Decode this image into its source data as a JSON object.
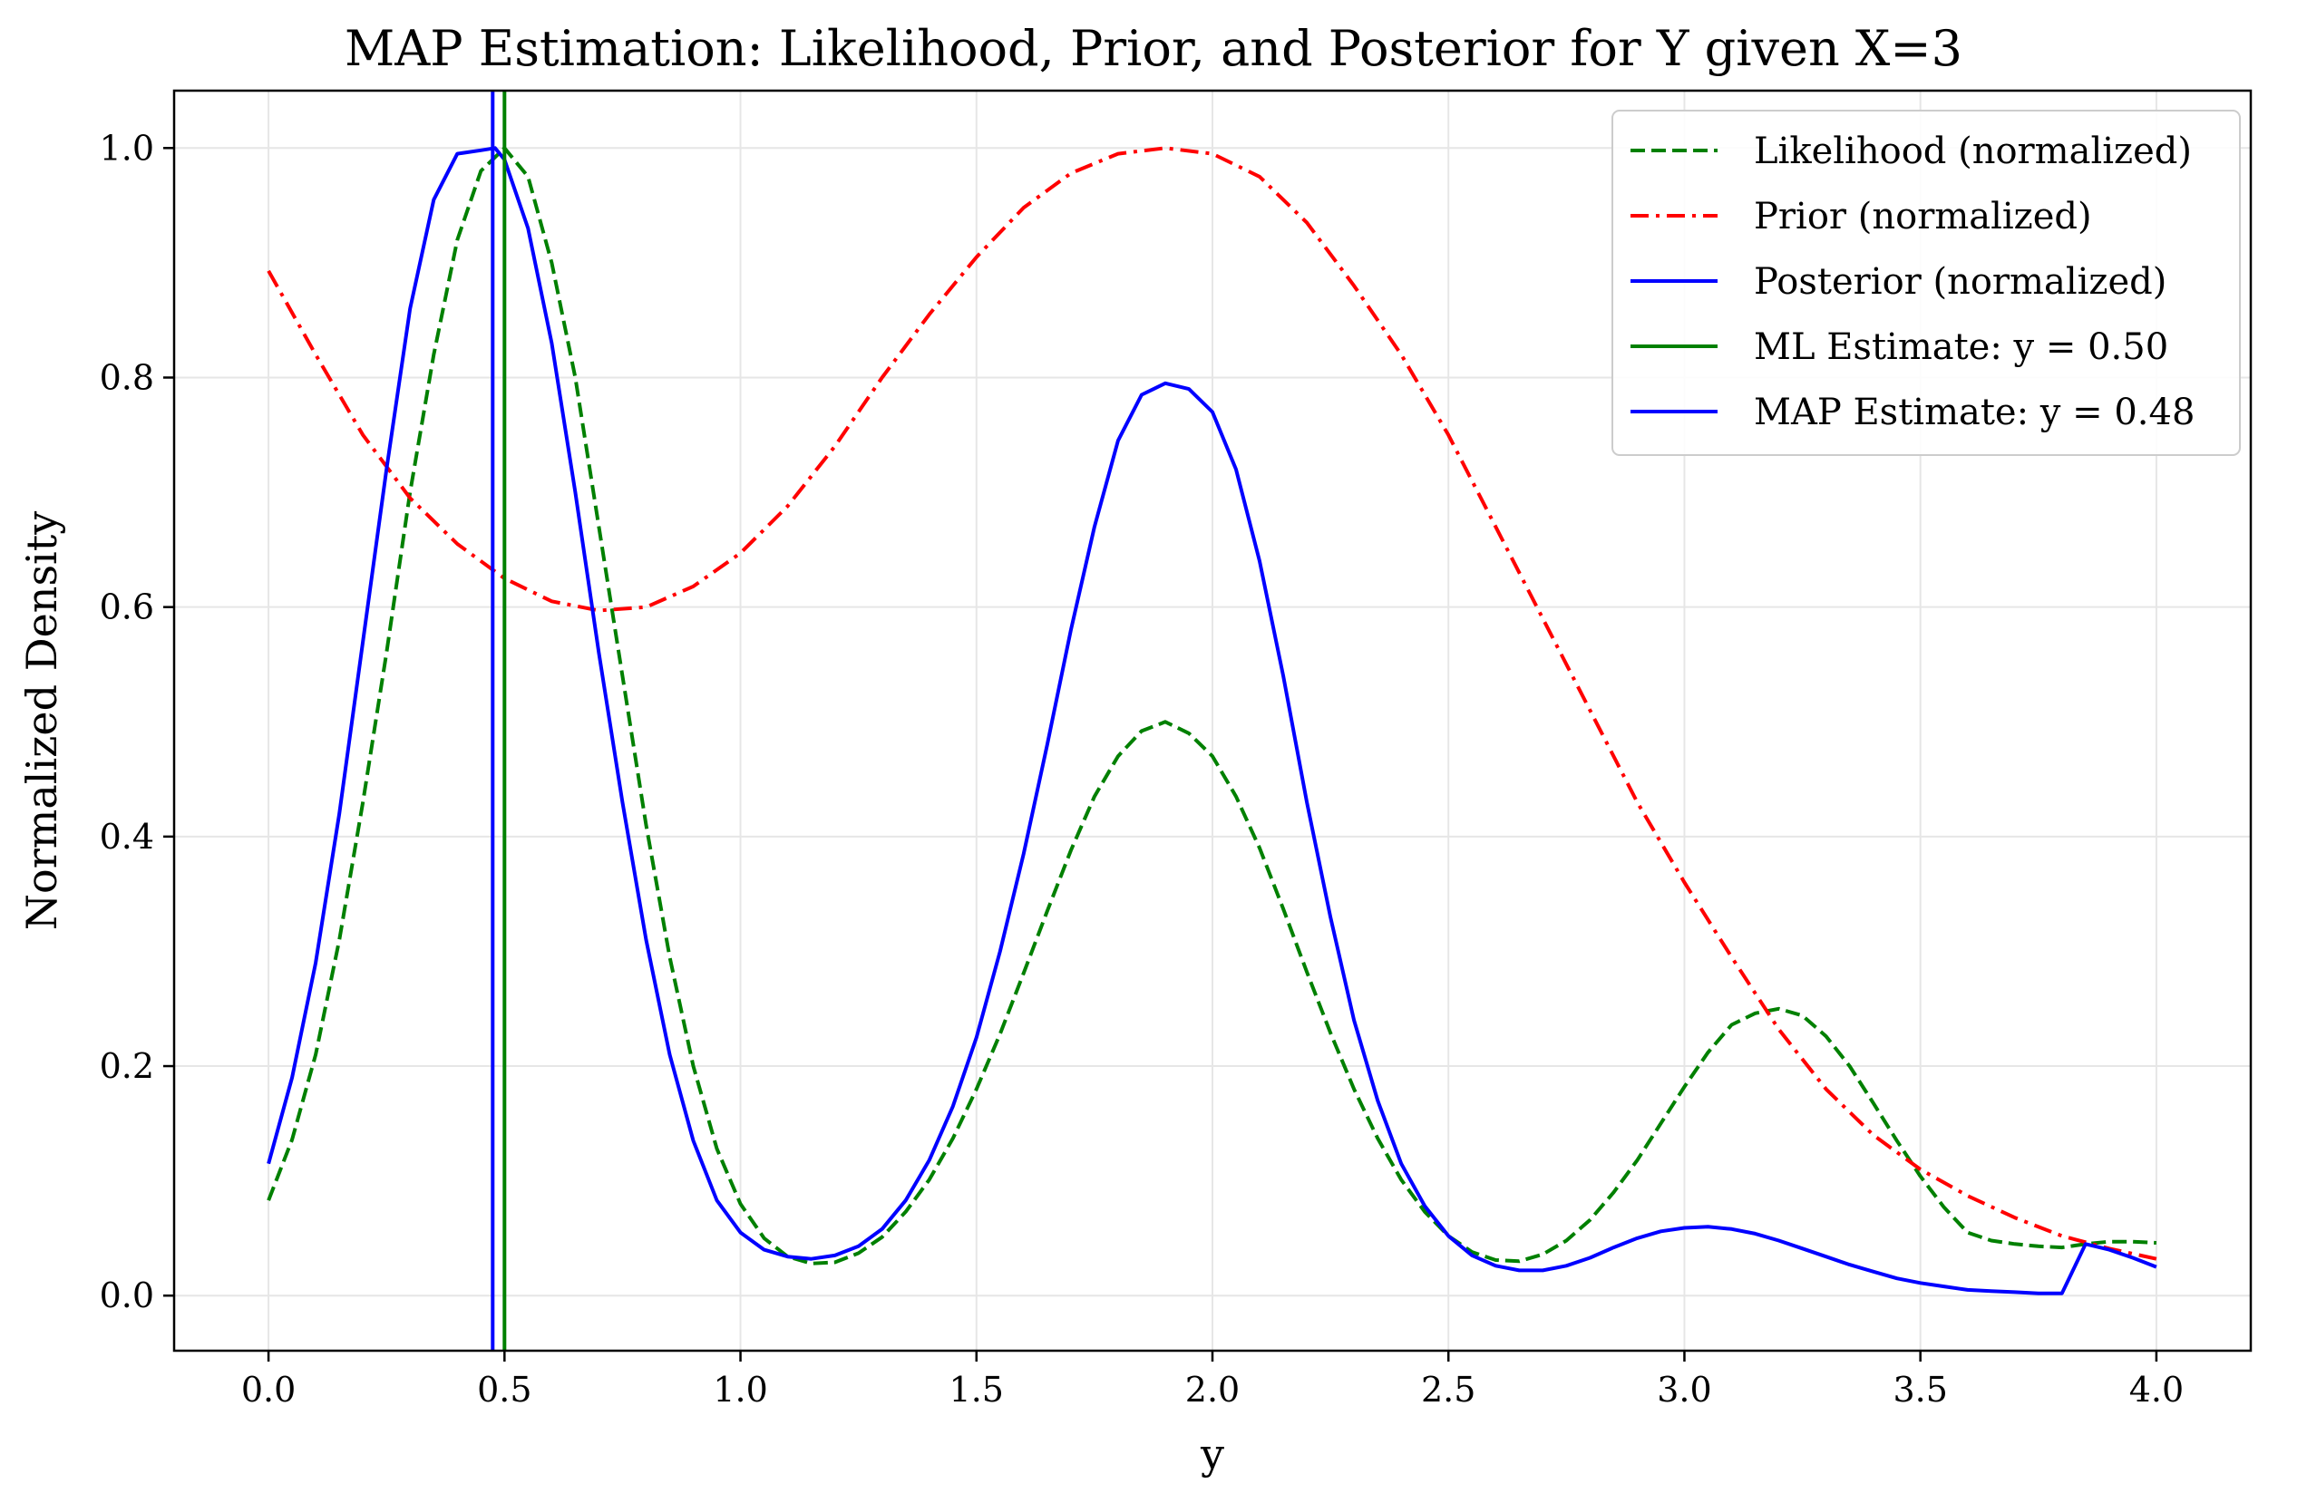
{
  "chart_data": {
    "type": "line",
    "title": "MAP Estimation: Likelihood, Prior, and Posterior for Y given X=3",
    "xlabel": "y",
    "ylabel": "Normalized Density",
    "xlim": [
      -0.2,
      4.2
    ],
    "ylim": [
      -0.048,
      1.05
    ],
    "x_ticks": [
      0.0,
      0.5,
      1.0,
      1.5,
      2.0,
      2.5,
      3.0,
      3.5,
      4.0
    ],
    "x_tick_labels": [
      "0.0",
      "0.5",
      "1.0",
      "1.5",
      "2.0",
      "2.5",
      "3.0",
      "3.5",
      "4.0"
    ],
    "y_ticks": [
      0.0,
      0.2,
      0.4,
      0.6,
      0.8,
      1.0
    ],
    "y_tick_labels": [
      "0.0",
      "0.2",
      "0.4",
      "0.6",
      "0.8",
      "1.0"
    ],
    "grid": true,
    "legend_position": "top-right",
    "series": [
      {
        "name": "Likelihood (normalized)",
        "color": "#008000",
        "style": "dashed",
        "x": [
          0.0,
          0.05,
          0.1,
          0.15,
          0.2,
          0.25,
          0.3,
          0.35,
          0.4,
          0.45,
          0.5,
          0.55,
          0.6,
          0.65,
          0.7,
          0.75,
          0.8,
          0.85,
          0.9,
          0.95,
          1.0,
          1.05,
          1.1,
          1.15,
          1.2,
          1.25,
          1.3,
          1.35,
          1.4,
          1.45,
          1.5,
          1.55,
          1.6,
          1.65,
          1.7,
          1.75,
          1.8,
          1.85,
          1.9,
          1.95,
          2.0,
          2.05,
          2.1,
          2.15,
          2.2,
          2.25,
          2.3,
          2.35,
          2.4,
          2.45,
          2.5,
          2.55,
          2.6,
          2.65,
          2.7,
          2.75,
          2.8,
          2.85,
          2.9,
          2.95,
          3.0,
          3.05,
          3.1,
          3.15,
          3.2,
          3.25,
          3.3,
          3.35,
          3.4,
          3.45,
          3.5,
          3.55,
          3.6,
          3.65,
          3.7,
          3.75,
          3.8,
          3.85,
          3.9,
          3.95,
          4.0
        ],
        "values": [
          0.083,
          0.136,
          0.21,
          0.31,
          0.43,
          0.56,
          0.7,
          0.82,
          0.92,
          0.98,
          1.0,
          0.975,
          0.9,
          0.8,
          0.67,
          0.54,
          0.41,
          0.295,
          0.2,
          0.128,
          0.08,
          0.05,
          0.034,
          0.028,
          0.029,
          0.037,
          0.051,
          0.073,
          0.101,
          0.137,
          0.18,
          0.228,
          0.281,
          0.335,
          0.388,
          0.435,
          0.47,
          0.492,
          0.5,
          0.49,
          0.47,
          0.435,
          0.39,
          0.337,
          0.282,
          0.229,
          0.18,
          0.137,
          0.101,
          0.073,
          0.052,
          0.038,
          0.031,
          0.03,
          0.036,
          0.048,
          0.066,
          0.09,
          0.118,
          0.15,
          0.182,
          0.212,
          0.236,
          0.246,
          0.25,
          0.244,
          0.226,
          0.2,
          0.168,
          0.135,
          0.104,
          0.077,
          0.055,
          0.048,
          0.045,
          0.043,
          0.042,
          0.045,
          0.047,
          0.047,
          0.046
        ]
      },
      {
        "name": "Prior (normalized)",
        "color": "#ff0000",
        "style": "dashdot",
        "x": [
          0.0,
          0.1,
          0.2,
          0.3,
          0.4,
          0.5,
          0.6,
          0.7,
          0.8,
          0.9,
          1.0,
          1.1,
          1.2,
          1.3,
          1.4,
          1.5,
          1.6,
          1.7,
          1.8,
          1.9,
          2.0,
          2.1,
          2.2,
          2.3,
          2.4,
          2.5,
          2.6,
          2.7,
          2.8,
          2.9,
          3.0,
          3.1,
          3.2,
          3.3,
          3.4,
          3.5,
          3.6,
          3.7,
          3.8,
          3.9,
          4.0
        ],
        "values": [
          0.893,
          0.82,
          0.75,
          0.695,
          0.655,
          0.625,
          0.605,
          0.597,
          0.6,
          0.618,
          0.647,
          0.688,
          0.74,
          0.8,
          0.855,
          0.905,
          0.948,
          0.978,
          0.995,
          1.0,
          0.995,
          0.975,
          0.935,
          0.88,
          0.82,
          0.75,
          0.67,
          0.59,
          0.51,
          0.43,
          0.36,
          0.295,
          0.232,
          0.18,
          0.14,
          0.11,
          0.087,
          0.068,
          0.052,
          0.041,
          0.032
        ]
      },
      {
        "name": "Posterior (normalized)",
        "color": "#0000ff",
        "style": "solid",
        "x": [
          0.0,
          0.05,
          0.1,
          0.15,
          0.2,
          0.25,
          0.3,
          0.35,
          0.4,
          0.45,
          0.48,
          0.5,
          0.55,
          0.6,
          0.65,
          0.7,
          0.75,
          0.8,
          0.85,
          0.9,
          0.95,
          1.0,
          1.05,
          1.1,
          1.15,
          1.2,
          1.25,
          1.3,
          1.35,
          1.4,
          1.45,
          1.5,
          1.55,
          1.6,
          1.65,
          1.7,
          1.75,
          1.8,
          1.85,
          1.9,
          1.95,
          2.0,
          2.05,
          2.1,
          2.15,
          2.2,
          2.25,
          2.3,
          2.35,
          2.4,
          2.45,
          2.5,
          2.55,
          2.6,
          2.65,
          2.7,
          2.75,
          2.8,
          2.85,
          2.9,
          2.95,
          3.0,
          3.05,
          3.1,
          3.15,
          3.2,
          3.25,
          3.3,
          3.35,
          3.4,
          3.45,
          3.5,
          3.55,
          3.6,
          3.65,
          3.7,
          3.75,
          3.8,
          3.85,
          3.9,
          3.95,
          4.0
        ],
        "values": [
          0.115,
          0.19,
          0.29,
          0.42,
          0.57,
          0.72,
          0.86,
          0.955,
          0.995,
          0.998,
          1.0,
          0.99,
          0.93,
          0.83,
          0.7,
          0.56,
          0.43,
          0.31,
          0.21,
          0.135,
          0.083,
          0.055,
          0.04,
          0.034,
          0.032,
          0.035,
          0.043,
          0.058,
          0.083,
          0.118,
          0.165,
          0.225,
          0.3,
          0.385,
          0.48,
          0.58,
          0.67,
          0.745,
          0.785,
          0.795,
          0.79,
          0.77,
          0.72,
          0.64,
          0.54,
          0.43,
          0.33,
          0.24,
          0.17,
          0.115,
          0.078,
          0.052,
          0.035,
          0.026,
          0.022,
          0.022,
          0.026,
          0.033,
          0.042,
          0.05,
          0.056,
          0.059,
          0.06,
          0.058,
          0.054,
          0.048,
          0.041,
          0.034,
          0.027,
          0.021,
          0.015,
          0.011,
          0.008,
          0.005,
          0.004,
          0.003,
          0.002,
          0.002,
          0.045,
          0.04,
          0.033,
          0.025
        ]
      }
    ],
    "vlines": [
      {
        "name": "ML Estimate: y = 0.50",
        "x": 0.5,
        "color": "#008000"
      },
      {
        "name": "MAP Estimate: y = 0.48",
        "x": 0.475,
        "color": "#0000ff"
      }
    ]
  }
}
